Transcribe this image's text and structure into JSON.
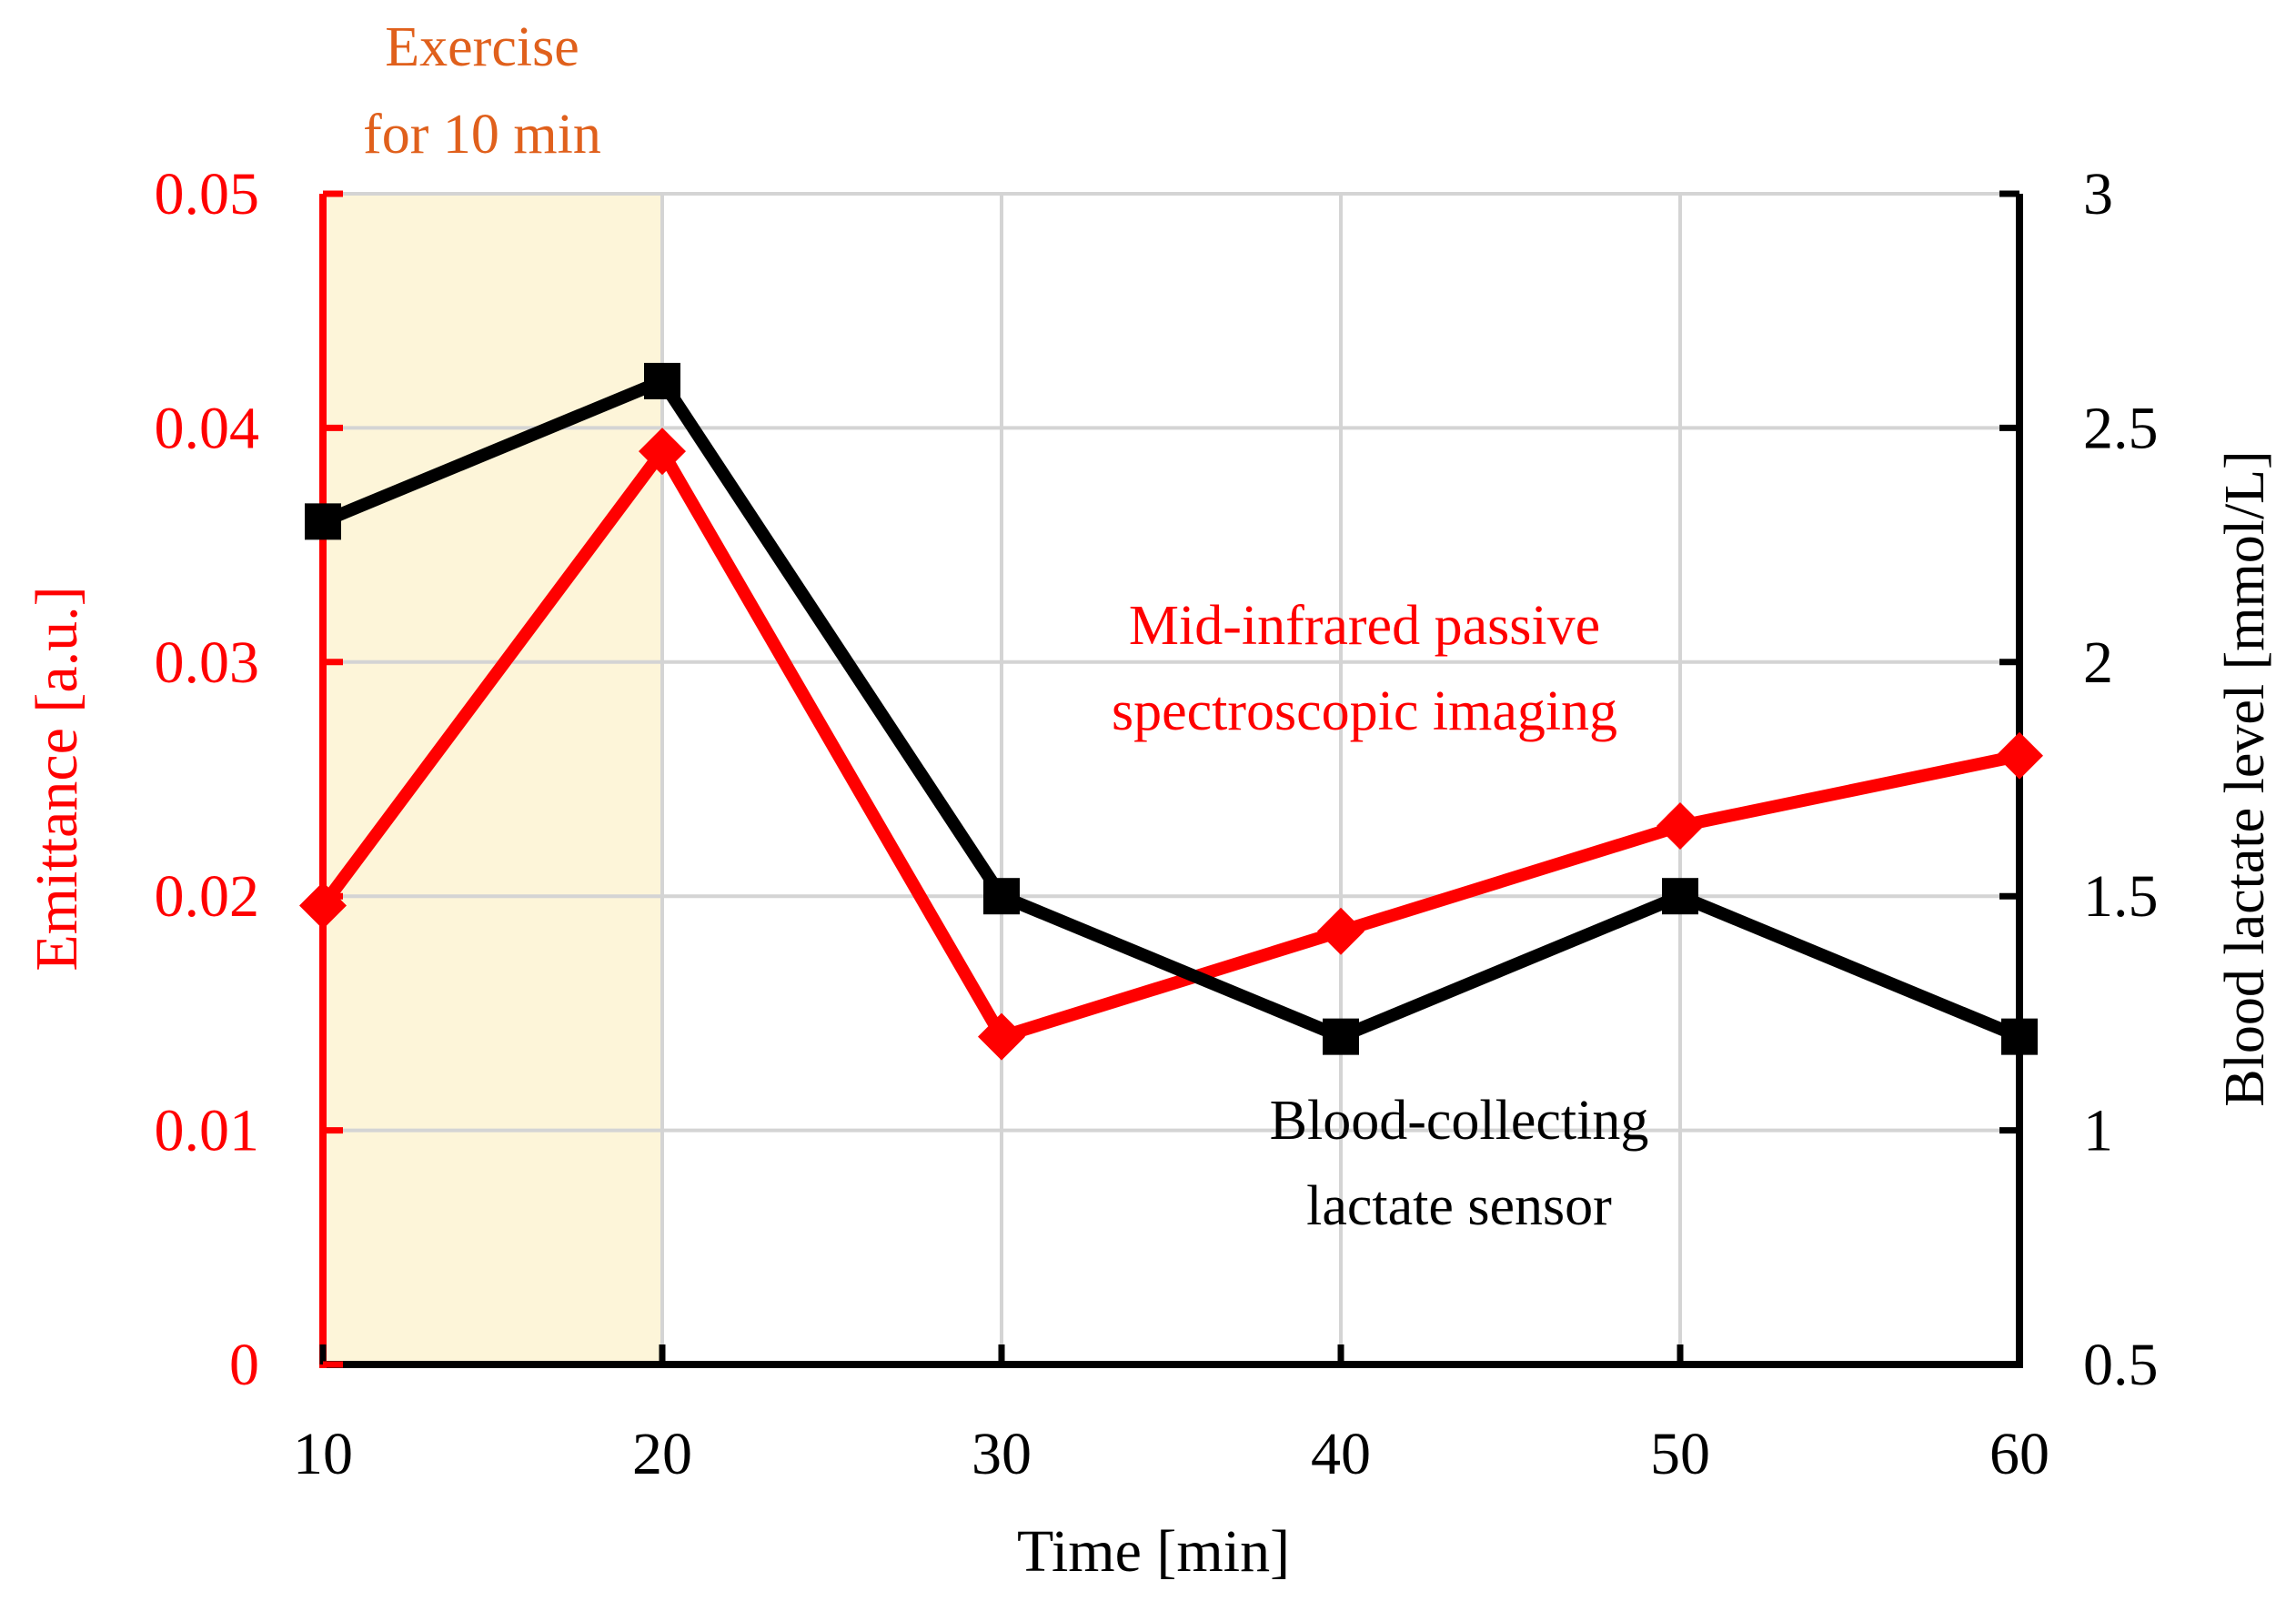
{
  "chart_data": {
    "type": "line",
    "xlabel": "Time [min]",
    "ylabel_left": "Emittance [a.u.]",
    "ylabel_right": "Blood lactate level [mmol/L]",
    "xlim": [
      10,
      60
    ],
    "xticks": [
      10,
      20,
      30,
      40,
      50,
      60
    ],
    "xtick_labels": [
      "10",
      "20",
      "30",
      "40",
      "50",
      "60"
    ],
    "ylim_left": [
      0,
      0.05
    ],
    "yticks_left": [
      0,
      0.01,
      0.02,
      0.03,
      0.04,
      0.05
    ],
    "ytick_labels_left": [
      "0",
      "0.01",
      "0.02",
      "0.03",
      "0.04",
      "0.05"
    ],
    "ylim_right": [
      0.5,
      3
    ],
    "yticks_right": [
      0.5,
      1,
      1.5,
      2,
      2.5,
      3
    ],
    "ytick_labels_right": [
      "0.5",
      "1",
      "1.5",
      "2",
      "2.5",
      "3"
    ],
    "grid": true,
    "shaded_region": {
      "x_range": [
        10,
        20
      ],
      "label_line1": "Exercise",
      "label_line2": "for 10 min",
      "fill": "#fdf5d9",
      "label_color": "#e0601c"
    },
    "series": [
      {
        "name": "Mid-infrared passive spectroscopic imaging",
        "label_line1": "Mid-infrared passive",
        "label_line2": "spectroscopic imaging",
        "axis": "left",
        "color": "#ff0000",
        "marker": "diamond",
        "x": [
          10,
          20,
          30,
          40,
          50,
          60
        ],
        "values": [
          0.0196,
          0.039,
          0.014,
          0.0185,
          0.023,
          0.026
        ]
      },
      {
        "name": "Blood-collecting lactate sensor",
        "label_line1": "Blood-collecting",
        "label_line2": "lactate sensor",
        "axis": "right",
        "color": "#000000",
        "marker": "square",
        "x": [
          10,
          20,
          30,
          40,
          50,
          60
        ],
        "values": [
          2.3,
          2.6,
          1.5,
          1.2,
          1.5,
          1.2
        ]
      }
    ]
  }
}
